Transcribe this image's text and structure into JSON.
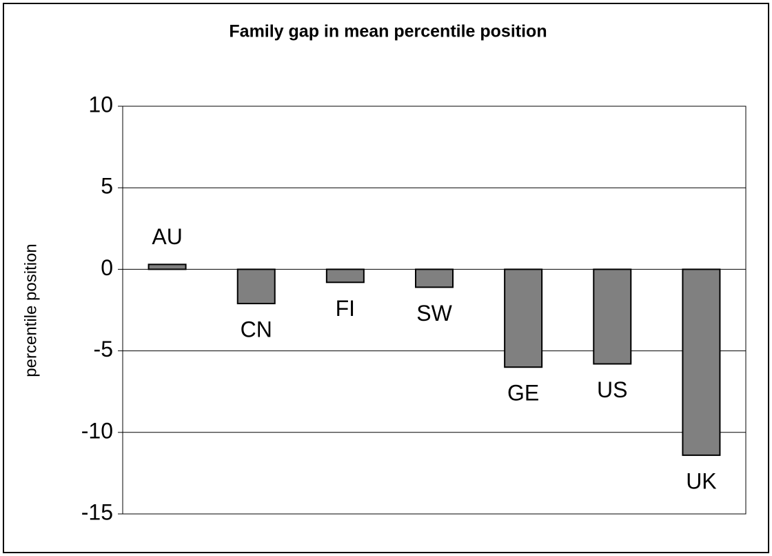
{
  "chart_data": {
    "type": "bar",
    "title": "Family gap in mean percentile position",
    "y_label": "percentile position",
    "categories": [
      "AU",
      "CN",
      "FI",
      "SW",
      "GE",
      "US",
      "UK"
    ],
    "values": [
      0.3,
      -2.1,
      -0.8,
      -1.1,
      -6.0,
      -5.8,
      -11.4
    ],
    "color": "#808080",
    "ylim": [
      -15,
      10
    ],
    "yticks": [
      -15,
      -10,
      -5,
      0,
      5,
      10
    ],
    "grid": true
  }
}
